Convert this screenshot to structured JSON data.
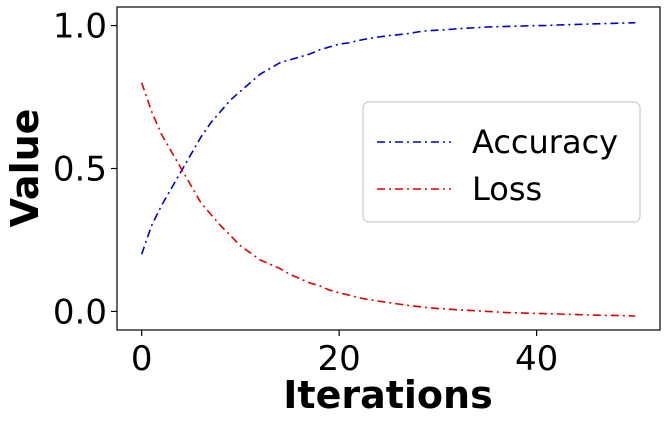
{
  "chart_data": {
    "type": "line",
    "title": "",
    "xlabel": "Iterations",
    "ylabel": "Value",
    "xlim": [
      -2.5,
      52.5
    ],
    "ylim": [
      -0.065,
      1.065
    ],
    "grid": false,
    "legend_position": "center-right",
    "x_ticks": [
      0,
      20,
      40
    ],
    "x_tick_labels": [
      "0",
      "20",
      "40"
    ],
    "y_ticks": [
      0.0,
      0.5,
      1.0
    ],
    "y_tick_labels": [
      "0.0",
      "0.5",
      "1.0"
    ],
    "x": [
      0,
      1,
      2,
      3,
      4,
      5,
      6,
      7,
      8,
      9,
      10,
      11,
      12,
      13,
      14,
      15,
      16,
      17,
      18,
      19,
      20,
      21,
      22,
      23,
      24,
      25,
      26,
      27,
      28,
      29,
      30,
      31,
      32,
      33,
      34,
      35,
      36,
      37,
      38,
      39,
      40,
      41,
      42,
      43,
      44,
      45,
      46,
      47,
      48,
      49,
      50
    ],
    "series": [
      {
        "name": "Accuracy",
        "color": "#0000cc",
        "dash": "dashdot",
        "values": [
          0.2,
          0.3,
          0.37,
          0.43,
          0.49,
          0.55,
          0.61,
          0.66,
          0.7,
          0.74,
          0.77,
          0.8,
          0.83,
          0.85,
          0.87,
          0.88,
          0.89,
          0.9,
          0.915,
          0.925,
          0.935,
          0.94,
          0.948,
          0.955,
          0.96,
          0.965,
          0.968,
          0.972,
          0.978,
          0.982,
          0.984,
          0.986,
          0.989,
          0.991,
          0.993,
          0.995,
          0.996,
          0.997,
          0.998,
          0.999,
          1.0,
          1.0,
          1.002,
          1.003,
          1.004,
          1.005,
          1.006,
          1.007,
          1.008,
          1.009,
          1.01
        ]
      },
      {
        "name": "Loss",
        "color": "#e00000",
        "dash": "dashdot",
        "values": [
          0.8,
          0.7,
          0.62,
          0.56,
          0.5,
          0.44,
          0.38,
          0.34,
          0.3,
          0.265,
          0.23,
          0.205,
          0.18,
          0.165,
          0.15,
          0.13,
          0.115,
          0.1,
          0.09,
          0.075,
          0.065,
          0.057,
          0.048,
          0.041,
          0.036,
          0.031,
          0.026,
          0.021,
          0.017,
          0.013,
          0.01,
          0.008,
          0.006,
          0.004,
          0.002,
          0.0,
          -0.002,
          -0.004,
          -0.005,
          -0.006,
          -0.007,
          -0.008,
          -0.009,
          -0.01,
          -0.011,
          -0.012,
          -0.013,
          -0.014,
          -0.014,
          -0.015,
          -0.016
        ]
      }
    ]
  }
}
